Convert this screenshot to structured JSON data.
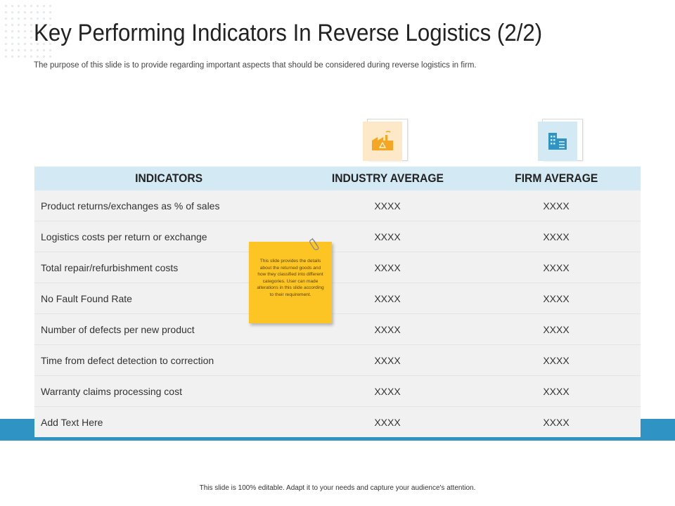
{
  "slide": {
    "title": "Key Performing Indicators In Reverse Logistics (2/2)",
    "subtitle": "The purpose of this slide is to provide regarding important aspects that should be considered during reverse logistics in firm."
  },
  "table": {
    "headers": [
      "INDICATORS",
      "INDUSTRY AVERAGE",
      "FIRM AVERAGE"
    ],
    "rows": [
      {
        "indicator": "Product returns/exchanges as % of sales",
        "industry": "XXXX",
        "firm": "XXXX"
      },
      {
        "indicator": "Logistics costs per return or exchange",
        "industry": "XXXX",
        "firm": "XXXX"
      },
      {
        "indicator": "Total repair/refurbishment costs",
        "industry": "XXXX",
        "firm": "XXXX"
      },
      {
        "indicator": "No Fault Found Rate",
        "industry": "XXXX",
        "firm": "XXXX"
      },
      {
        "indicator": "Number of defects per new product",
        "industry": "XXXX",
        "firm": "XXXX"
      },
      {
        "indicator": "Time from defect detection to correction",
        "industry": "XXXX",
        "firm": "XXXX"
      },
      {
        "indicator": "Warranty claims processing cost",
        "industry": "XXXX",
        "firm": "XXXX"
      },
      {
        "indicator": "Add Text Here",
        "industry": "XXXX",
        "firm": "XXXX"
      }
    ]
  },
  "sticky_note": {
    "text": "This slide provides the details about the returned goods and how they classified into different categories. User can made alterations in this slide according to their requirement."
  },
  "icons": {
    "industry": "factory-icon",
    "firm": "office-building-icon"
  },
  "colors": {
    "header_bg": "#d3e9f4",
    "band": "#2f93c4",
    "sticky": "#fdc524",
    "industry_icon_bg": "#fde8c8",
    "firm_icon_bg": "#d3e9f4"
  },
  "footer": {
    "text": "This slide is 100% editable. Adapt it to your needs and capture your audience's attention."
  }
}
